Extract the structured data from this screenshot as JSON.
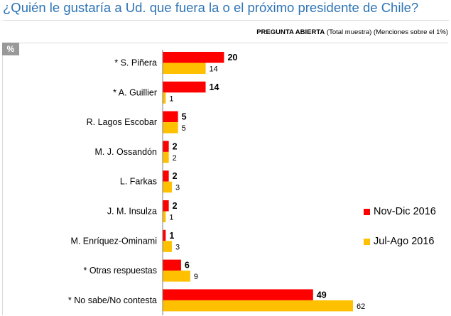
{
  "header": {
    "title": "¿Quién le gustaría a Ud. que fuera la o el próximo presidente de Chile?",
    "subhead_strong": "PREGUNTA ABIERTA",
    "subhead_rest": " (Total muestra) (Menciones sobre el 1%)",
    "badge": "%"
  },
  "chart_data": {
    "type": "bar",
    "orientation": "horizontal",
    "categories": [
      "* S. Piñera",
      "* A. Guillier",
      "R. Lagos Escobar",
      "M. J. Ossandón",
      "L. Farkas",
      "J. M. Insulza",
      "M. Enríquez-Ominami",
      "* Otras respuestas",
      "* No sabe/No contesta"
    ],
    "series": [
      {
        "name": "Nov-Dic 2016",
        "color": "#FF0000",
        "values": [
          20,
          14,
          5,
          2,
          2,
          2,
          1,
          6,
          49
        ]
      },
      {
        "name": "Jul-Ago 2016",
        "color": "#FFC000",
        "values": [
          14,
          1,
          5,
          2,
          3,
          1,
          3,
          9,
          62
        ]
      }
    ],
    "title": "¿Quién le gustaría a Ud. que fuera la o el próximo presidente de Chile?",
    "xlabel": "",
    "ylabel": "%",
    "xlim": [
      0,
      62
    ],
    "grid": false,
    "legend_position": "right"
  }
}
